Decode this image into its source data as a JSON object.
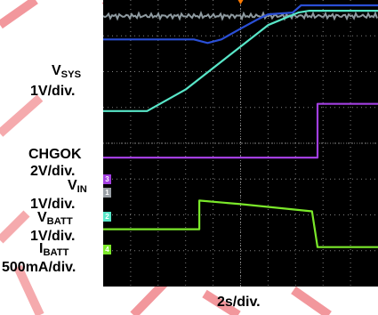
{
  "labels": {
    "vsys_name": "V",
    "vsys_sub": "SYS",
    "vsys_scale": "1V/div.",
    "chgok_name": "CHGOK",
    "chgok_scale": "2V/div.",
    "vin_name": "V",
    "vin_sub": "IN",
    "vin_scale": "1V/div.",
    "vbatt_name": "V",
    "vbatt_sub": "BATT",
    "vbatt_scale": "1V/div.",
    "ibatt_name": "I",
    "ibatt_sub": "BATT",
    "ibatt_scale": "500mA/div.",
    "time_scale": "2s/div."
  },
  "markers": {
    "ch3": "3",
    "ch1": "1",
    "ch2": "2",
    "ch4": "4"
  },
  "colors": {
    "background": "#ffffff",
    "plot_bg": "#000000",
    "grid": "#808080",
    "vsys": "#2a4fd6",
    "vbatt": "#58e6c8",
    "chgok": "#a23fe0",
    "ibatt": "#7be82a",
    "top_trace": "#8e9aa0",
    "watermark": "#e8424a"
  },
  "chart_data": {
    "type": "line",
    "title": "",
    "xlabel": "2s/div.",
    "ylabel": "",
    "x_divisions": 10,
    "y_divisions": 8,
    "xlim": [
      0,
      10
    ],
    "ylim": [
      0,
      8
    ],
    "series": [
      {
        "name": "VSYS",
        "x": [
          0,
          3.3,
          3.8,
          4.3,
          5.0,
          5.6,
          6.0,
          6.9,
          7.2,
          10
        ],
        "y": [
          6.9,
          6.9,
          6.8,
          6.9,
          7.2,
          7.45,
          7.6,
          7.65,
          7.85,
          7.85
        ]
      },
      {
        "name": "VBATT",
        "x": [
          0,
          1.6,
          3.0,
          4.5,
          6.0,
          7.1,
          7.5,
          10
        ],
        "y": [
          4.9,
          4.9,
          5.5,
          6.4,
          7.3,
          7.65,
          7.7,
          7.7
        ]
      },
      {
        "name": "CHGOK",
        "x": [
          0,
          7.8,
          7.8,
          10
        ],
        "y": [
          3.6,
          3.6,
          5.1,
          5.1
        ]
      },
      {
        "name": "IBATT",
        "x": [
          0,
          3.5,
          3.5,
          5.0,
          7.6,
          7.7,
          7.8,
          10
        ],
        "y": [
          1.6,
          1.6,
          2.4,
          2.3,
          2.1,
          1.6,
          1.1,
          1.1
        ]
      }
    ]
  }
}
